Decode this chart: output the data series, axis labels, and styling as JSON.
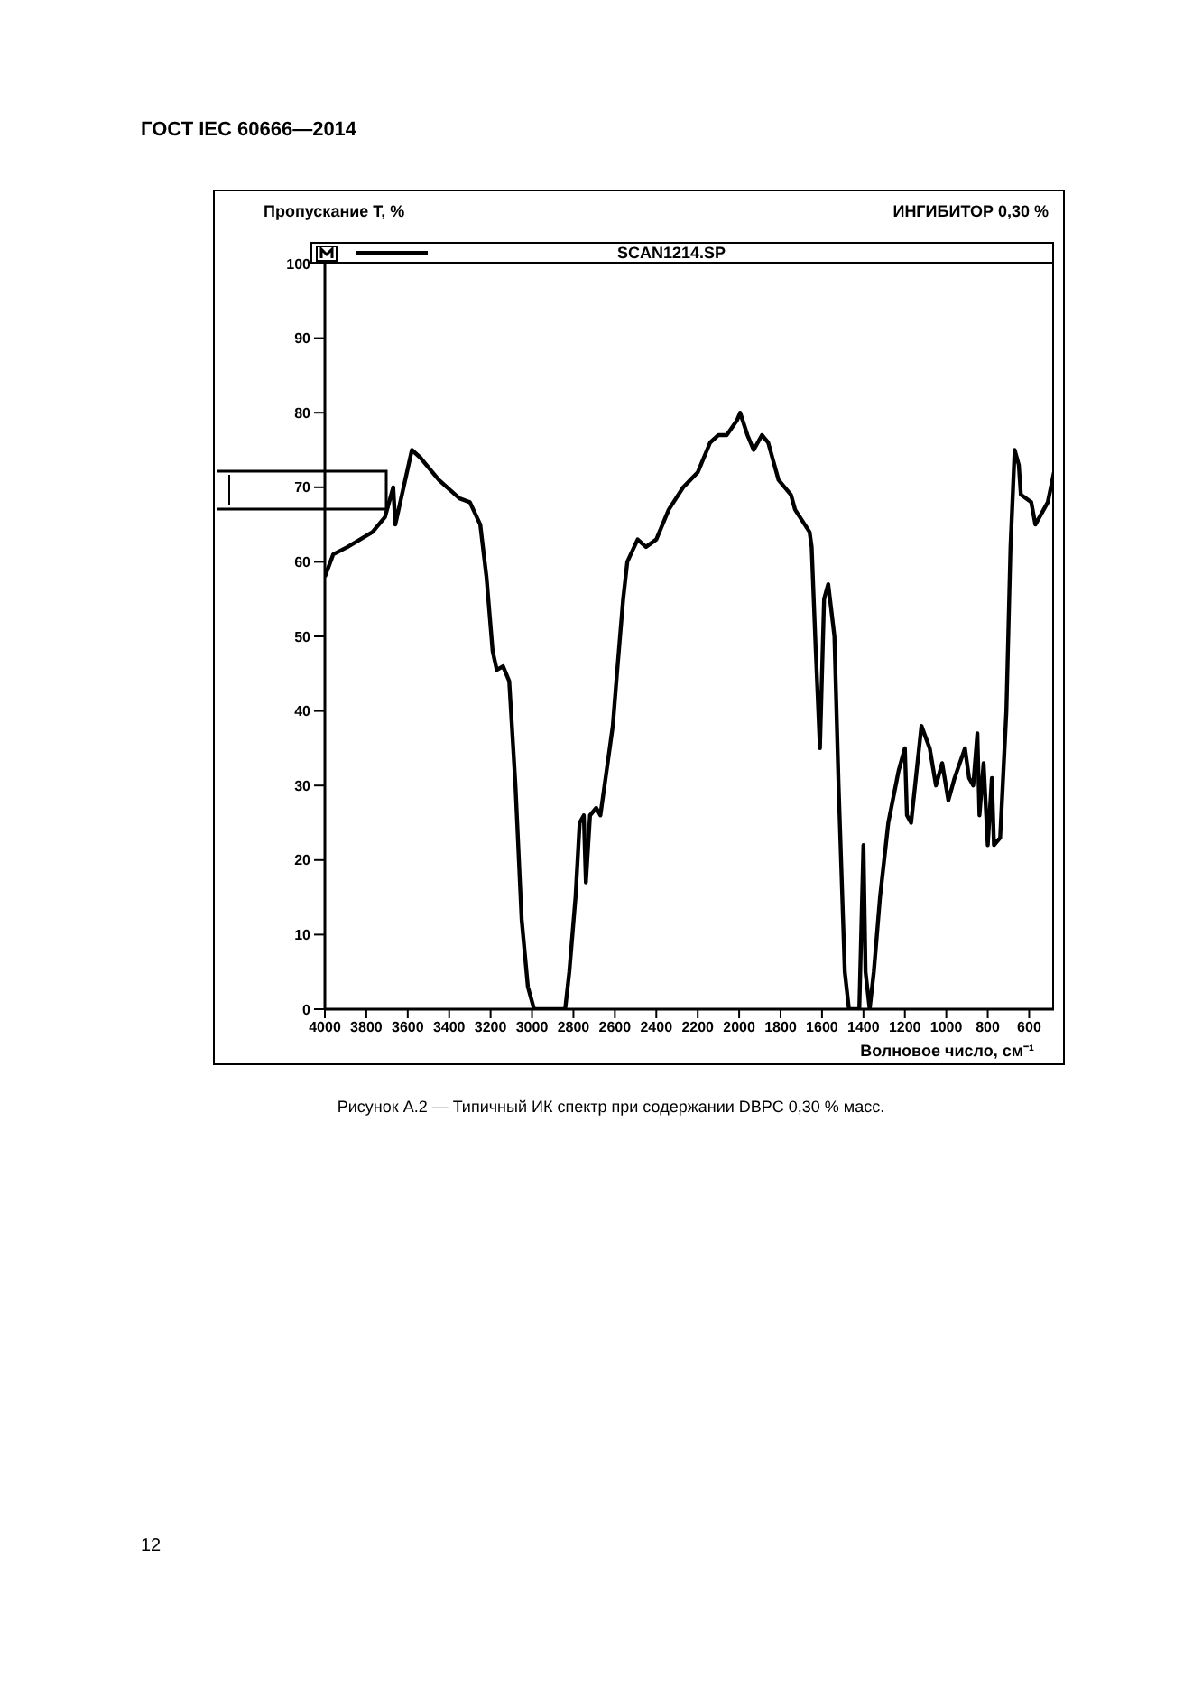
{
  "chart_data": {
    "type": "line",
    "title": "ГОСТ IEC 60666—2014",
    "subtitle": "ИНГИБИТОР 0,30 %",
    "ylabel": "Пропускание T, %",
    "xlabel": "Волновое число, см⁻¹",
    "annotations": [
      "Рисунок А.2 — Типичный ИК спектр при содержании DBPC 0,30 % масс.",
      "12"
    ],
    "x": [
      4000,
      3960,
      3890,
      3830,
      3770,
      3710,
      3670,
      3660,
      3580,
      3540,
      3450,
      3410,
      3350,
      3300,
      3250,
      3220,
      3190,
      3170,
      3140,
      3110,
      3080,
      3050,
      3020,
      2990,
      2840,
      2820,
      2790,
      2770,
      2750,
      2740,
      2720,
      2690,
      2670,
      2640,
      2610,
      2590,
      2560,
      2540,
      2490,
      2450,
      2400,
      2340,
      2270,
      2200,
      2140,
      2100,
      2060,
      2010,
      1995,
      1960,
      1930,
      1890,
      1860,
      1810,
      1780,
      1750,
      1730,
      1660,
      1650,
      1630,
      1610,
      1590,
      1570,
      1540,
      1520,
      1490,
      1470,
      1420,
      1400,
      1390,
      1370,
      1350,
      1320,
      1280,
      1230,
      1200,
      1190,
      1170,
      1120,
      1080,
      1050,
      1020,
      990,
      960,
      910,
      890,
      870,
      850,
      840,
      820,
      800,
      780,
      770,
      740,
      710,
      690,
      670,
      650,
      640,
      590,
      570,
      510,
      480
    ],
    "series": [
      {
        "name": "SCAN1214.SP",
        "color": "#000000",
        "values": [
          58,
          61,
          62,
          63,
          64,
          66,
          70,
          65,
          75,
          74,
          71,
          70,
          68.5,
          68,
          65,
          58,
          48,
          45.5,
          46,
          44,
          30,
          12,
          3,
          0,
          0,
          5,
          15,
          25,
          26,
          17,
          26,
          27,
          26,
          32,
          38,
          45,
          55,
          60,
          63,
          62,
          63,
          67,
          70,
          72,
          76,
          77,
          77,
          79,
          80,
          77,
          75,
          77,
          76,
          71,
          70,
          69,
          67,
          64,
          62,
          48,
          35,
          55,
          57,
          50,
          30,
          5,
          0,
          0,
          22,
          5,
          0,
          5,
          15,
          25,
          32,
          35,
          26,
          25,
          38,
          35,
          30,
          33,
          28,
          31,
          35,
          31,
          30,
          37,
          26,
          33,
          22,
          31,
          22,
          23,
          40,
          62,
          75,
          73,
          69,
          68,
          65,
          68,
          72
        ]
      }
    ],
    "xlim": [
      4000,
      480
    ],
    "xticks": [
      4000,
      3800,
      3600,
      3400,
      3200,
      3000,
      2800,
      2600,
      2400,
      2200,
      2000,
      1800,
      1600,
      1400,
      1200,
      1000,
      800,
      600
    ],
    "ylim": [
      0,
      100
    ],
    "yticks": [
      0,
      10,
      20,
      30,
      40,
      50,
      60,
      70,
      80,
      90,
      100
    ],
    "grid": false,
    "legend": "top",
    "marker": "none",
    "line_style": "solid"
  }
}
